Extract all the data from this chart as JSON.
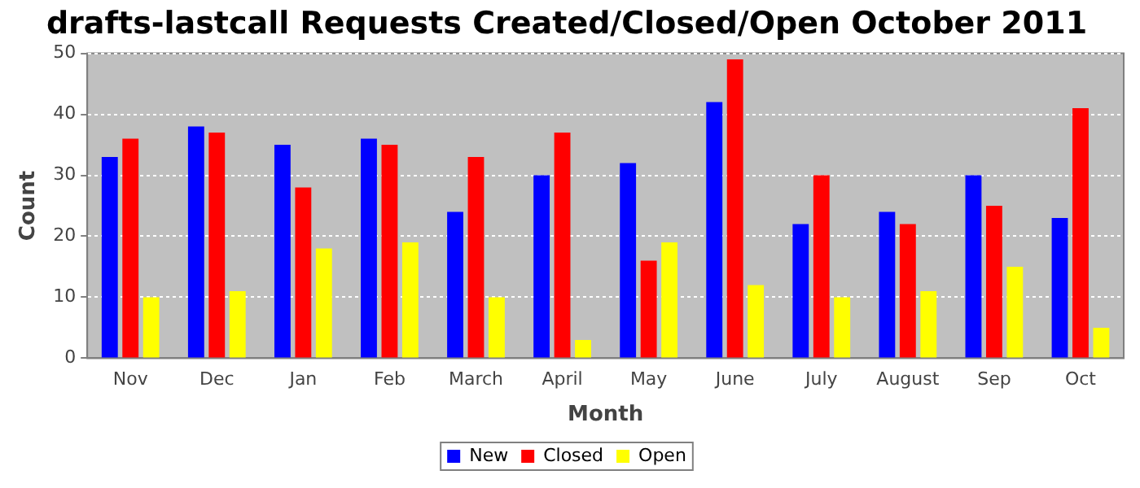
{
  "chart_data": {
    "type": "bar",
    "title": "drafts-lastcall Requests Created/Closed/Open October 2011",
    "xlabel": "Month",
    "ylabel": "Count",
    "categories": [
      "Nov",
      "Dec",
      "Jan",
      "Feb",
      "March",
      "April",
      "May",
      "June",
      "July",
      "August",
      "Sep",
      "Oct"
    ],
    "series": [
      {
        "name": "New",
        "color": "#0000ff",
        "values": [
          33,
          38,
          35,
          36,
          24,
          30,
          32,
          42,
          22,
          24,
          30,
          23
        ]
      },
      {
        "name": "Closed",
        "color": "#ff0000",
        "values": [
          36,
          37,
          28,
          35,
          33,
          37,
          16,
          49,
          30,
          22,
          25,
          41
        ]
      },
      {
        "name": "Open",
        "color": "#ffff00",
        "values": [
          10,
          11,
          18,
          19,
          10,
          3,
          19,
          12,
          10,
          11,
          15,
          5
        ]
      }
    ],
    "ylim": [
      0,
      50
    ],
    "yticks": [
      0,
      10,
      20,
      30,
      40,
      50
    ],
    "grid": "y",
    "legend": "bottom"
  }
}
